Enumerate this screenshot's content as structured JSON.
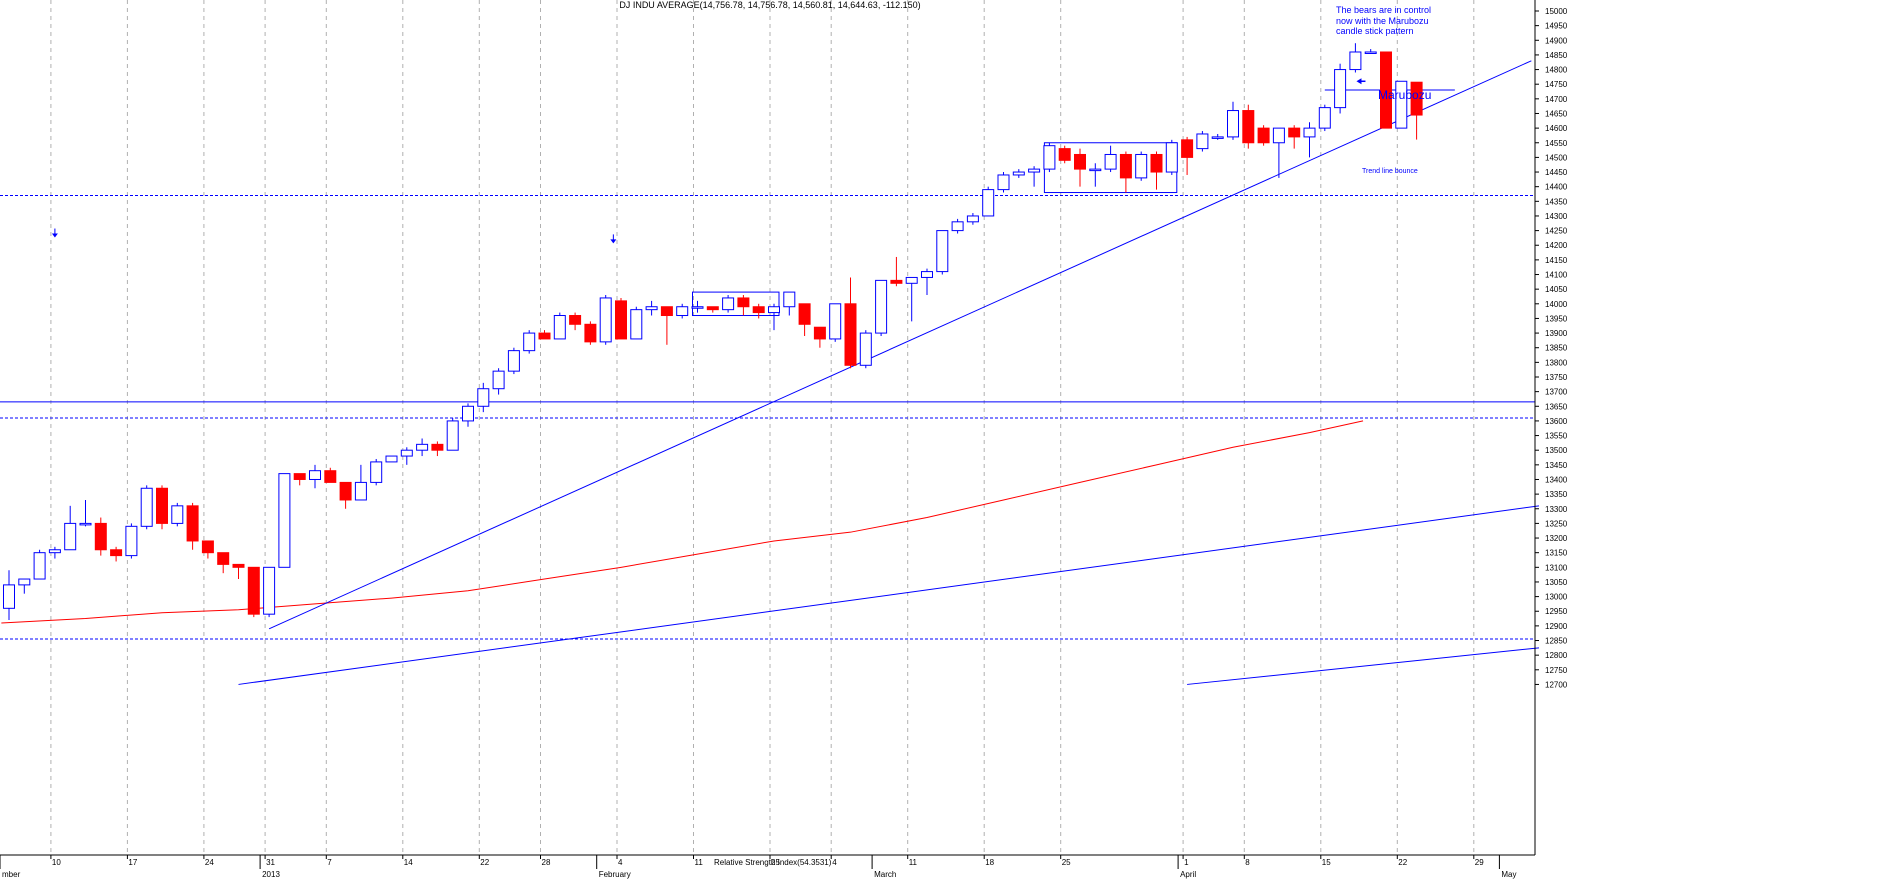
{
  "chart_data": {
    "type": "candlestick",
    "title": "DJ INDU AVERAGE(14,756.78, 14,756.78, 14,560.81, 14,644.63, -112.150)",
    "indicator_label": "Relative Strength Index(54.3531)",
    "y_axis": {
      "min": 12700,
      "max": 15000,
      "step": 50
    },
    "x_day_labels": [
      {
        "i": 3,
        "label": "10"
      },
      {
        "i": 8,
        "label": "17"
      },
      {
        "i": 13,
        "label": "24"
      },
      {
        "i": 17,
        "label": "31"
      },
      {
        "i": 21,
        "label": "7"
      },
      {
        "i": 26,
        "label": "14"
      },
      {
        "i": 31,
        "label": "22"
      },
      {
        "i": 35,
        "label": "28"
      },
      {
        "i": 40,
        "label": "4"
      },
      {
        "i": 45,
        "label": "11"
      },
      {
        "i": 50,
        "label": "25"
      },
      {
        "i": 54,
        "label": "4"
      },
      {
        "i": 59,
        "label": "11"
      },
      {
        "i": 64,
        "label": "18"
      },
      {
        "i": 69,
        "label": "25"
      },
      {
        "i": 77,
        "label": "1"
      },
      {
        "i": 81,
        "label": "8"
      },
      {
        "i": 86,
        "label": "15"
      },
      {
        "i": 91,
        "label": "22"
      },
      {
        "i": 96,
        "label": "29"
      }
    ],
    "x_month_labels": [
      {
        "i": 0,
        "label": "mber"
      },
      {
        "i": 17,
        "label": "2013"
      },
      {
        "i": 39,
        "label": "February"
      },
      {
        "i": 57,
        "label": "March"
      },
      {
        "i": 77,
        "label": "April"
      },
      {
        "i": 98,
        "label": "May"
      }
    ],
    "candles": [
      {
        "o": 12960,
        "h": 13090,
        "l": 12920,
        "c": 13040
      },
      {
        "o": 13040,
        "h": 13060,
        "l": 13010,
        "c": 13060
      },
      {
        "o": 13060,
        "h": 13160,
        "l": 13060,
        "c": 13150
      },
      {
        "o": 13150,
        "h": 13170,
        "l": 13130,
        "c": 13160
      },
      {
        "o": 13160,
        "h": 13310,
        "l": 13160,
        "c": 13250
      },
      {
        "o": 13250,
        "h": 13330,
        "l": 13240,
        "c": 13250
      },
      {
        "o": 13250,
        "h": 13270,
        "l": 13140,
        "c": 13160
      },
      {
        "o": 13160,
        "h": 13170,
        "l": 13120,
        "c": 13140
      },
      {
        "o": 13140,
        "h": 13250,
        "l": 13130,
        "c": 13240
      },
      {
        "o": 13240,
        "h": 13380,
        "l": 13230,
        "c": 13370
      },
      {
        "o": 13370,
        "h": 13380,
        "l": 13230,
        "c": 13250
      },
      {
        "o": 13250,
        "h": 13320,
        "l": 13240,
        "c": 13310
      },
      {
        "o": 13310,
        "h": 13320,
        "l": 13160,
        "c": 13190
      },
      {
        "o": 13190,
        "h": 13190,
        "l": 13130,
        "c": 13150
      },
      {
        "o": 13150,
        "h": 13150,
        "l": 13080,
        "c": 13110
      },
      {
        "o": 13110,
        "h": 13110,
        "l": 13060,
        "c": 13100
      },
      {
        "o": 13100,
        "h": 13100,
        "l": 12930,
        "c": 12940
      },
      {
        "o": 12940,
        "h": 13100,
        "l": 12930,
        "c": 13100
      },
      {
        "o": 13100,
        "h": 13420,
        "l": 13100,
        "c": 13420
      },
      {
        "o": 13420,
        "h": 13420,
        "l": 13380,
        "c": 13400
      },
      {
        "o": 13400,
        "h": 13450,
        "l": 13370,
        "c": 13430
      },
      {
        "o": 13430,
        "h": 13440,
        "l": 13390,
        "c": 13390
      },
      {
        "o": 13390,
        "h": 13390,
        "l": 13300,
        "c": 13330
      },
      {
        "o": 13330,
        "h": 13450,
        "l": 13330,
        "c": 13390
      },
      {
        "o": 13390,
        "h": 13470,
        "l": 13380,
        "c": 13460
      },
      {
        "o": 13460,
        "h": 13480,
        "l": 13460,
        "c": 13480
      },
      {
        "o": 13480,
        "h": 13510,
        "l": 13450,
        "c": 13500
      },
      {
        "o": 13500,
        "h": 13540,
        "l": 13480,
        "c": 13520
      },
      {
        "o": 13520,
        "h": 13530,
        "l": 13480,
        "c": 13500
      },
      {
        "o": 13500,
        "h": 13610,
        "l": 13500,
        "c": 13600
      },
      {
        "o": 13600,
        "h": 13660,
        "l": 13580,
        "c": 13650
      },
      {
        "o": 13650,
        "h": 13730,
        "l": 13630,
        "c": 13710
      },
      {
        "o": 13710,
        "h": 13780,
        "l": 13690,
        "c": 13770
      },
      {
        "o": 13770,
        "h": 13850,
        "l": 13760,
        "c": 13840
      },
      {
        "o": 13840,
        "h": 13910,
        "l": 13830,
        "c": 13900
      },
      {
        "o": 13900,
        "h": 13910,
        "l": 13880,
        "c": 13880
      },
      {
        "o": 13880,
        "h": 13970,
        "l": 13880,
        "c": 13960
      },
      {
        "o": 13960,
        "h": 13970,
        "l": 13910,
        "c": 13930
      },
      {
        "o": 13930,
        "h": 13940,
        "l": 13860,
        "c": 13870
      },
      {
        "o": 13870,
        "h": 14030,
        "l": 13860,
        "c": 14020
      },
      {
        "o": 14010,
        "h": 14020,
        "l": 13880,
        "c": 13880
      },
      {
        "o": 13880,
        "h": 13990,
        "l": 13880,
        "c": 13980
      },
      {
        "o": 13980,
        "h": 14010,
        "l": 13960,
        "c": 13990
      },
      {
        "o": 13990,
        "h": 13990,
        "l": 13860,
        "c": 13960
      },
      {
        "o": 13960,
        "h": 14000,
        "l": 13950,
        "c": 13990
      },
      {
        "o": 13990,
        "h": 14010,
        "l": 13970,
        "c": 13990
      },
      {
        "o": 13990,
        "h": 13990,
        "l": 13970,
        "c": 13980
      },
      {
        "o": 13980,
        "h": 14030,
        "l": 13970,
        "c": 14020
      },
      {
        "o": 14020,
        "h": 14030,
        "l": 13960,
        "c": 13990
      },
      {
        "o": 13990,
        "h": 14000,
        "l": 13950,
        "c": 13970
      },
      {
        "o": 13970,
        "h": 14000,
        "l": 13910,
        "c": 13990
      },
      {
        "o": 13990,
        "h": 14040,
        "l": 13960,
        "c": 14040
      },
      {
        "o": 14000,
        "h": 14000,
        "l": 13890,
        "c": 13930
      },
      {
        "o": 13920,
        "h": 13920,
        "l": 13850,
        "c": 13880
      },
      {
        "o": 13880,
        "h": 14000,
        "l": 13870,
        "c": 14000
      },
      {
        "o": 14000,
        "h": 14090,
        "l": 13780,
        "c": 13790
      },
      {
        "o": 13790,
        "h": 13910,
        "l": 13780,
        "c": 13900
      },
      {
        "o": 13900,
        "h": 14080,
        "l": 13890,
        "c": 14080
      },
      {
        "o": 14080,
        "h": 14160,
        "l": 14060,
        "c": 14070
      },
      {
        "o": 14070,
        "h": 14090,
        "l": 13940,
        "c": 14090
      },
      {
        "o": 14090,
        "h": 14120,
        "l": 14030,
        "c": 14110
      },
      {
        "o": 14110,
        "h": 14250,
        "l": 14100,
        "c": 14250
      },
      {
        "o": 14250,
        "h": 14290,
        "l": 14240,
        "c": 14280
      },
      {
        "o": 14280,
        "h": 14310,
        "l": 14270,
        "c": 14300
      },
      {
        "o": 14300,
        "h": 14400,
        "l": 14300,
        "c": 14390
      },
      {
        "o": 14390,
        "h": 14450,
        "l": 14380,
        "c": 14440
      },
      {
        "o": 14440,
        "h": 14460,
        "l": 14430,
        "c": 14450
      },
      {
        "o": 14450,
        "h": 14470,
        "l": 14400,
        "c": 14460
      },
      {
        "o": 14460,
        "h": 14550,
        "l": 14450,
        "c": 14540
      },
      {
        "o": 14530,
        "h": 14540,
        "l": 14480,
        "c": 14490
      },
      {
        "o": 14510,
        "h": 14530,
        "l": 14400,
        "c": 14460
      },
      {
        "o": 14460,
        "h": 14480,
        "l": 14400,
        "c": 14460
      },
      {
        "o": 14460,
        "h": 14540,
        "l": 14450,
        "c": 14510
      },
      {
        "o": 14510,
        "h": 14520,
        "l": 14380,
        "c": 14430
      },
      {
        "o": 14430,
        "h": 14520,
        "l": 14420,
        "c": 14510
      },
      {
        "o": 14510,
        "h": 14520,
        "l": 14390,
        "c": 14450
      },
      {
        "o": 14450,
        "h": 14560,
        "l": 14440,
        "c": 14550
      },
      {
        "o": 14560,
        "h": 14570,
        "l": 14440,
        "c": 14500
      },
      {
        "o": 14530,
        "h": 14590,
        "l": 14520,
        "c": 14580
      },
      {
        "o": 14570,
        "h": 14580,
        "l": 14560,
        "c": 14570
      },
      {
        "o": 14570,
        "h": 14690,
        "l": 14560,
        "c": 14660
      },
      {
        "o": 14660,
        "h": 14680,
        "l": 14530,
        "c": 14550
      },
      {
        "o": 14600,
        "h": 14610,
        "l": 14540,
        "c": 14550
      },
      {
        "o": 14550,
        "h": 14600,
        "l": 14430,
        "c": 14600
      },
      {
        "o": 14600,
        "h": 14610,
        "l": 14530,
        "c": 14570
      },
      {
        "o": 14570,
        "h": 14620,
        "l": 14500,
        "c": 14600
      },
      {
        "o": 14600,
        "h": 14680,
        "l": 14590,
        "c": 14670
      },
      {
        "o": 14670,
        "h": 14820,
        "l": 14650,
        "c": 14800
      },
      {
        "o": 14800,
        "h": 14890,
        "l": 14790,
        "c": 14860
      },
      {
        "o": 14860,
        "h": 14870,
        "l": 14860,
        "c": 14860
      },
      {
        "o": 14860,
        "h": 14860,
        "l": 14600,
        "c": 14600
      },
      {
        "o": 14600,
        "h": 14760,
        "l": 14600,
        "c": 14760
      },
      {
        "o": 14756.78,
        "h": 14756.78,
        "l": 14560.81,
        "c": 14644.63
      }
    ],
    "moving_average_red": [
      {
        "i": -0.5,
        "v": 12910
      },
      {
        "i": 5,
        "v": 12925
      },
      {
        "i": 10,
        "v": 12945
      },
      {
        "i": 15,
        "v": 12955
      },
      {
        "i": 20,
        "v": 12975
      },
      {
        "i": 25,
        "v": 12995
      },
      {
        "i": 30,
        "v": 13020
      },
      {
        "i": 35,
        "v": 13060
      },
      {
        "i": 40,
        "v": 13100
      },
      {
        "i": 45,
        "v": 13145
      },
      {
        "i": 50,
        "v": 13190
      },
      {
        "i": 55,
        "v": 13220
      },
      {
        "i": 60,
        "v": 13270
      },
      {
        "i": 65,
        "v": 13330
      },
      {
        "i": 70,
        "v": 13390
      },
      {
        "i": 75,
        "v": 13450
      },
      {
        "i": 80,
        "v": 13510
      },
      {
        "i": 85,
        "v": 13560
      },
      {
        "i": 88.5,
        "v": 13600
      }
    ],
    "horizontal_lines": [
      {
        "v": 14370,
        "style": "dotted"
      },
      {
        "v": 13665,
        "style": "solid"
      },
      {
        "v": 13610,
        "style": "dotted"
      },
      {
        "v": 12855,
        "style": "dotted"
      }
    ],
    "trend_lines": [
      {
        "from": {
          "i": 17,
          "v": 12890
        },
        "to": {
          "i": 99.5,
          "v": 14830
        },
        "name": "main-uptrend"
      },
      {
        "from": {
          "i": 15,
          "v": 12700
        },
        "to": {
          "i": 100,
          "v": 13310
        },
        "name": "long-uptrend"
      },
      {
        "from": {
          "i": 77,
          "v": 12700
        },
        "to": {
          "i": 100,
          "v": 12825
        },
        "name": "lower-uptrend"
      },
      {
        "from": {
          "i": 86,
          "v": 14730
        },
        "to": {
          "i": 94.5,
          "v": 14730
        },
        "name": "marubozu-level"
      }
    ],
    "range_boxes": [
      {
        "from": 45,
        "to": 50,
        "top": 14040,
        "bottom": 13960
      },
      {
        "from": 68,
        "to": 76,
        "top": 14550,
        "bottom": 14380
      }
    ],
    "arrows_down": [
      {
        "i": 3,
        "v": 14240
      },
      {
        "i": 39.5,
        "v": 14220
      }
    ],
    "arrow_left": {
      "i": 88.2,
      "v": 14760
    }
  },
  "annotations": {
    "bears_note": [
      "The bears are in control",
      "now with the Marubozu",
      "candle stick pattern"
    ],
    "marubozu": "Marubozu",
    "trend_bounce": "Trend line bounce"
  },
  "colors": {
    "bull": "#0000ff",
    "bear": "#ff0000",
    "grid": "#b0b0b0",
    "ma": "#ff0000",
    "line": "#0000ff"
  }
}
